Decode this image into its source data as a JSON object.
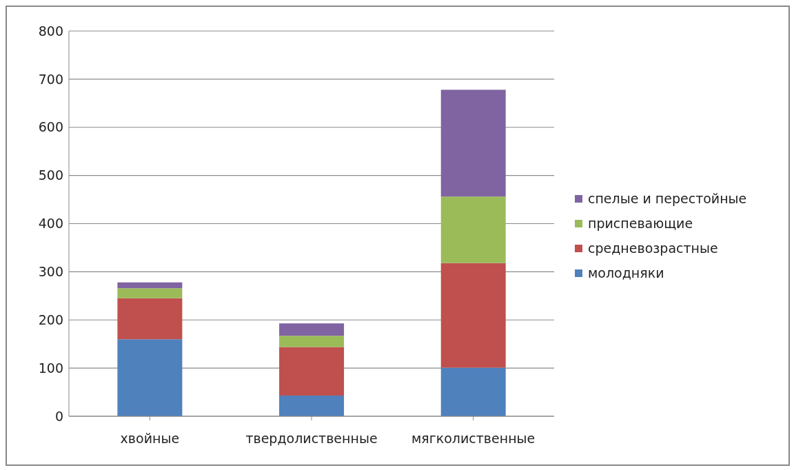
{
  "chart_data": {
    "type": "bar",
    "stacked": true,
    "categories": [
      "хвойные",
      "твердолиственные",
      "мягколиственные"
    ],
    "series": [
      {
        "name": "молодняки",
        "color": "#4f81bd",
        "values": [
          160,
          43,
          101
        ]
      },
      {
        "name": "средневозрастные",
        "color": "#c0504d",
        "values": [
          85,
          101,
          217
        ]
      },
      {
        "name": "приспевающие",
        "color": "#9bbb59",
        "values": [
          21,
          23,
          138
        ]
      },
      {
        "name": "спелые и перестойные",
        "color": "#8064a2",
        "values": [
          12,
          26,
          222
        ]
      }
    ],
    "ylim": [
      0,
      800
    ],
    "yticks": [
      0,
      100,
      200,
      300,
      400,
      500,
      600,
      700,
      800
    ],
    "grid": "y",
    "legend": "right"
  }
}
